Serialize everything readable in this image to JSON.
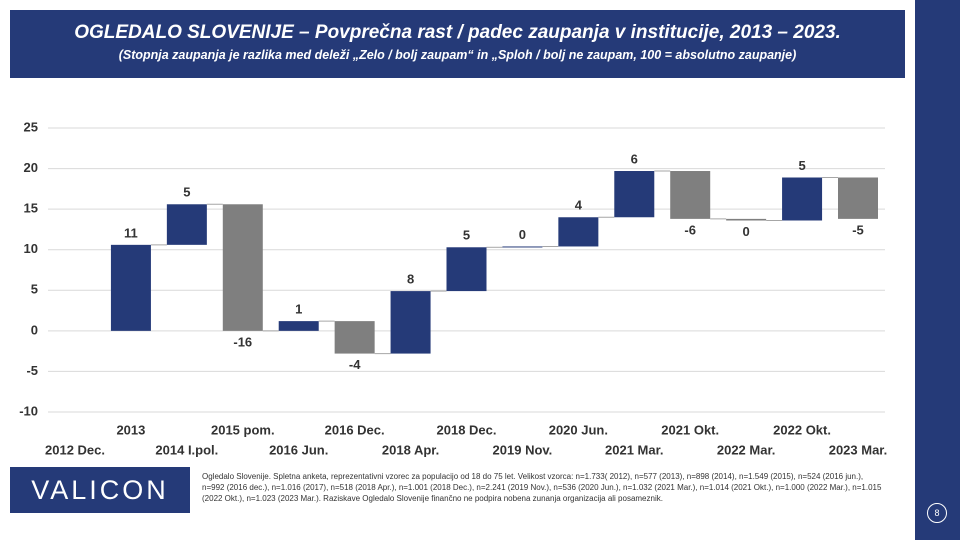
{
  "title": "OGLEDALO SLOVENIJE – Povprečna rast / padec zaupanja v institucije, 2013 – 2023.",
  "subtitle": "(Stopnja zaupanja je razlika med deleži „Zelo / bolj zaupam“ in „Sploh / bolj ne zaupam, 100 = absolutno zaupanje)",
  "logo": "VALICON",
  "footnote": "Ogledalo Slovenije. Spletna anketa, reprezentativni vzorec za populacijo od 18 do 75 let. Velikost vzorca: n=1.733( 2012), n=577 (2013), n=898 (2014), n=1.549 (2015), n=524 (2016 jun.), n=992 (2016 dec.), n=1.016 (2017), n=518 (2018 Apr.), n=1.001 (2018 Dec.), n=2.241 (2019 Nov.), n=536 (2020 Jun.), n=1.032 (2021 Mar.), n=1.014 (2021 Okt.), n=1.000 (2022 Mar.), n=1.015 (2022 Okt.), n=1.023 (2023 Mar.). Raziskave Ogledalo Slovenije finančno ne podpira nobena zunanja organizacija ali posameznik.",
  "page_number": "8",
  "chart_data": {
    "type": "waterfall",
    "categories": [
      "2012 Dec.",
      "2013",
      "2014 I.pol.",
      "2015 pom.",
      "2016 Jun.",
      "2016 Dec.",
      "2018 Apr.",
      "2018 Dec.",
      "2019 Nov.",
      "2020 Jun.",
      "2021 Mar.",
      "2021 Okt.",
      "2022 Mar.",
      "2022 Okt.",
      "2023 Mar."
    ],
    "values": [
      null,
      10.6,
      5.0,
      -15.6,
      1.2,
      -4.0,
      7.7,
      5.4,
      0.1,
      3.6,
      5.7,
      -5.9,
      -0.2,
      5.3,
      -5.1
    ],
    "value_labels": [
      null,
      "11",
      "5",
      "-16",
      "1",
      "-4",
      "8",
      "5",
      "0",
      "4",
      "6",
      "-6",
      "0",
      "5",
      "-5"
    ],
    "positive_color": "#253a78",
    "negative_color": "#7f7f7f",
    "ylim": [
      -10,
      25
    ],
    "yticks": [
      -10,
      -5,
      0,
      5,
      10,
      15,
      20,
      25
    ],
    "grid": true
  }
}
